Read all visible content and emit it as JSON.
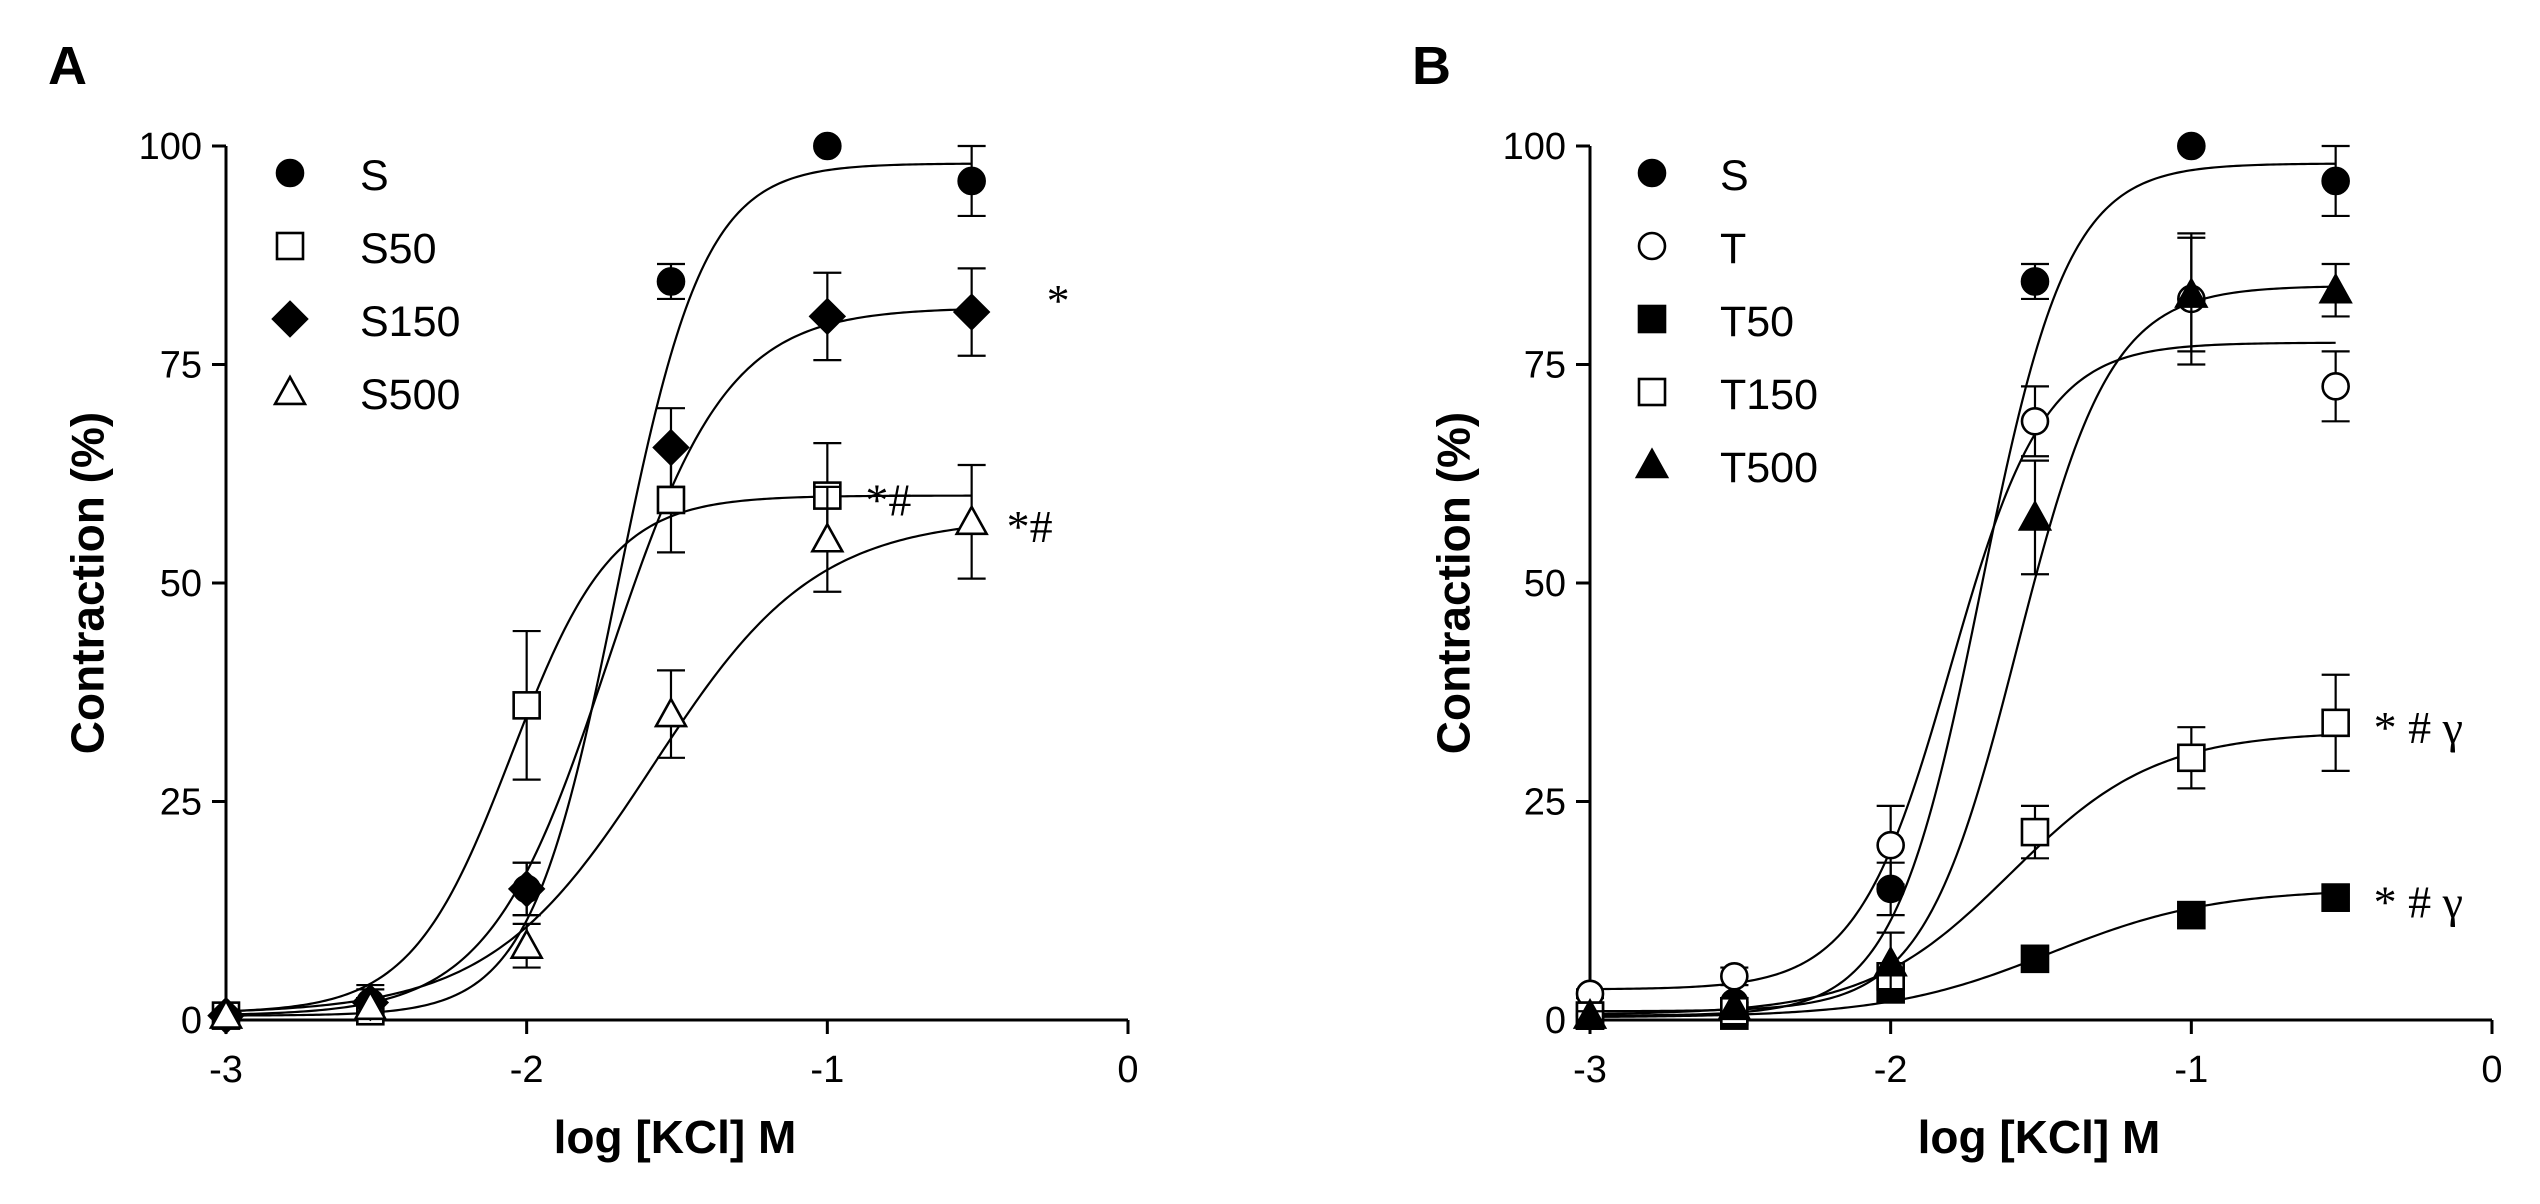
{
  "chart_data": [
    {
      "type": "scatter",
      "panel_label": "A",
      "xlabel": "log [KCl] M",
      "ylabel": "Contraction (%)",
      "xlim": [
        -3,
        0
      ],
      "ylim": [
        0,
        100
      ],
      "xticks": [
        -3,
        -2,
        -1,
        0
      ],
      "xtick_labels": [
        "-3",
        "-2",
        "-1",
        "0"
      ],
      "yticks": [
        0,
        25,
        50,
        75,
        100
      ],
      "ytick_labels": [
        "0",
        "25",
        "50",
        "75",
        "100"
      ],
      "x": [
        -3,
        -2.52,
        -2,
        -1.52,
        -1,
        -0.52
      ],
      "legend_position": "top-left",
      "series": [
        {
          "name": "S",
          "marker": "circle-filled",
          "values": [
            0.5,
            2,
            15,
            84.5,
            100,
            96
          ],
          "errors": [
            0.5,
            2,
            3,
            2,
            0,
            4
          ],
          "fit": {
            "bottom": 0.5,
            "top": 98,
            "logec50": -1.7,
            "hill": 3.0
          }
        },
        {
          "name": "S50",
          "marker": "square-open",
          "values": [
            0.5,
            1,
            36,
            59.5,
            60,
            null
          ],
          "errors": [
            0.5,
            1,
            8.5,
            6,
            6,
            0
          ],
          "fit": {
            "bottom": 0.8,
            "top": 60,
            "logec50": -2.05,
            "hill": 2.6
          }
        },
        {
          "name": "S150",
          "marker": "diamond-filled",
          "values": [
            0.5,
            2,
            15,
            65.5,
            80.5,
            81
          ],
          "errors": [
            0.5,
            1.5,
            3,
            4.5,
            5,
            5
          ],
          "fit": {
            "bottom": 0.5,
            "top": 81.5,
            "logec50": -1.73,
            "hill": 2.2
          }
        },
        {
          "name": "S500",
          "marker": "triangle-open",
          "values": [
            0.5,
            1.5,
            8.5,
            35,
            55,
            57
          ],
          "errors": [
            0.5,
            1,
            2.5,
            5,
            6,
            6.5
          ],
          "fit": {
            "bottom": 0.7,
            "top": 57.5,
            "logec50": -1.58,
            "hill": 1.6
          }
        }
      ],
      "annotations": [
        {
          "text": "*",
          "series": "S150"
        },
        {
          "text": "*#",
          "series": "S50"
        },
        {
          "text": "*#",
          "series": "S500"
        }
      ]
    },
    {
      "type": "scatter",
      "panel_label": "B",
      "xlabel": "log [KCl] M",
      "ylabel": "Contraction (%)",
      "xlim": [
        -3,
        0
      ],
      "ylim": [
        0,
        100
      ],
      "xticks": [
        -3,
        -2,
        -1,
        0
      ],
      "xtick_labels": [
        "-3",
        "-2",
        "-1",
        "0"
      ],
      "yticks": [
        0,
        25,
        50,
        75,
        100
      ],
      "ytick_labels": [
        "0",
        "25",
        "50",
        "75",
        "100"
      ],
      "x": [
        -3,
        -2.52,
        -2,
        -1.52,
        -1,
        -0.52
      ],
      "legend_position": "top-left",
      "series": [
        {
          "name": "S",
          "marker": "circle-filled",
          "values": [
            0.5,
            2,
            15,
            84.5,
            100,
            96
          ],
          "errors": [
            0.5,
            2,
            3,
            2,
            0,
            4
          ],
          "fit": {
            "bottom": 0.5,
            "top": 98,
            "logec50": -1.7,
            "hill": 3.0
          }
        },
        {
          "name": "T",
          "marker": "circle-open",
          "values": [
            3,
            5,
            20,
            68.5,
            82.5,
            72.5
          ],
          "errors": [
            0.5,
            1,
            4.5,
            4,
            7.5,
            4
          ],
          "fit": {
            "bottom": 3.5,
            "top": 77.5,
            "logec50": -1.8,
            "hill": 2.8
          }
        },
        {
          "name": "T50",
          "marker": "square-filled",
          "values": [
            0.5,
            0.5,
            3.5,
            7,
            12,
            14
          ],
          "errors": [
            0,
            0,
            1,
            1,
            1,
            1.5
          ],
          "fit": {
            "bottom": 0.3,
            "top": 15,
            "logec50": -1.47,
            "hill": 1.6
          }
        },
        {
          "name": "T150",
          "marker": "square-open",
          "values": [
            0.5,
            1,
            5,
            21.5,
            30,
            34
          ],
          "errors": [
            0.5,
            1,
            1.5,
            3,
            3.5,
            5.5
          ],
          "fit": {
            "bottom": 0.6,
            "top": 33,
            "logec50": -1.6,
            "hill": 1.8
          }
        },
        {
          "name": "T500",
          "marker": "triangle-filled",
          "values": [
            0.5,
            1.5,
            6.5,
            57.5,
            83,
            83.5
          ],
          "errors": [
            0.5,
            1,
            3.5,
            6.5,
            6.5,
            3
          ],
          "fit": {
            "bottom": 1.0,
            "top": 84,
            "logec50": -1.58,
            "hill": 2.8
          }
        }
      ],
      "annotations": [
        {
          "text": "* # γ",
          "series": "T150"
        },
        {
          "text": "* # γ",
          "series": "T50"
        }
      ]
    }
  ]
}
